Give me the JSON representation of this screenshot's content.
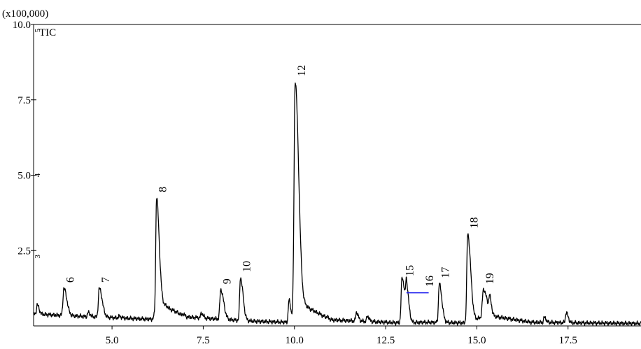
{
  "chart_data": {
    "type": "line",
    "scale_label": "(x100,000)",
    "trace_label": "TIC",
    "xlim": [
      2.85,
      19.5
    ],
    "ylim": [
      0,
      10
    ],
    "x_ticks": [
      {
        "value": 5.0,
        "label": "5.0"
      },
      {
        "value": 7.5,
        "label": "7.5"
      },
      {
        "value": 10.0,
        "label": "10.0"
      },
      {
        "value": 12.5,
        "label": "12.5"
      },
      {
        "value": 15.0,
        "label": "15.0"
      },
      {
        "value": 17.5,
        "label": "17.5"
      }
    ],
    "y_ticks": [
      {
        "value": 2.5,
        "label": "2.5"
      },
      {
        "value": 5.0,
        "label": "5.0"
      },
      {
        "value": 7.5,
        "label": "7.5"
      },
      {
        "value": 10.0,
        "label": "10.0"
      }
    ],
    "axis_marks": [
      {
        "y": 9.8,
        "text": "5"
      },
      {
        "y": 5.0,
        "text": "4"
      },
      {
        "y": 2.3,
        "text": "3"
      }
    ],
    "peaks": [
      {
        "label": "6",
        "rt": 3.68,
        "height": 1.25,
        "width": 0.025
      },
      {
        "label": "7",
        "rt": 4.65,
        "height": 1.25,
        "width": 0.025
      },
      {
        "label": "8",
        "rt": 6.22,
        "height": 4.25,
        "width": 0.022
      },
      {
        "label": "9",
        "rt": 7.98,
        "height": 1.2,
        "width": 0.025
      },
      {
        "label": "10",
        "rt": 8.52,
        "height": 1.6,
        "width": 0.022
      },
      {
        "label": "12",
        "rt": 10.02,
        "height": 8.1,
        "width": 0.03
      },
      {
        "label": "15",
        "rt": 12.95,
        "height": 1.6,
        "width": 0.025
      },
      {
        "label": "16",
        "rt": 13.07,
        "height": 1.1,
        "width": 0.02
      },
      {
        "label": "17",
        "rt": 13.97,
        "height": 1.4,
        "width": 0.022
      },
      {
        "label": "18",
        "rt": 14.75,
        "height": 3.05,
        "width": 0.025
      },
      {
        "label": "19",
        "rt": 15.18,
        "height": 1.2,
        "width": 0.03
      }
    ],
    "minor_peaks": [
      {
        "rt": 2.95,
        "height": 0.7
      },
      {
        "rt": 4.35,
        "height": 0.45
      },
      {
        "rt": 5.2,
        "height": 0.32
      },
      {
        "rt": 6.35,
        "height": 0.75
      },
      {
        "rt": 6.6,
        "height": 0.55
      },
      {
        "rt": 6.95,
        "height": 0.4
      },
      {
        "rt": 7.45,
        "height": 0.42
      },
      {
        "rt": 9.85,
        "height": 0.85
      },
      {
        "rt": 10.9,
        "height": 0.3
      },
      {
        "rt": 11.7,
        "height": 0.45
      },
      {
        "rt": 12.0,
        "height": 0.32
      },
      {
        "rt": 15.35,
        "height": 0.85
      },
      {
        "rt": 16.85,
        "height": 0.28
      },
      {
        "rt": 17.45,
        "height": 0.45
      }
    ],
    "baseline": [
      [
        2.85,
        0.4
      ],
      [
        3.6,
        0.35
      ],
      [
        4.5,
        0.3
      ],
      [
        6.1,
        0.22
      ],
      [
        6.35,
        0.75
      ],
      [
        7.0,
        0.3
      ],
      [
        8.0,
        0.22
      ],
      [
        9.0,
        0.15
      ],
      [
        9.9,
        0.12
      ],
      [
        10.3,
        0.65
      ],
      [
        11.0,
        0.2
      ],
      [
        12.9,
        0.1
      ],
      [
        13.6,
        0.12
      ],
      [
        14.7,
        0.1
      ],
      [
        15.3,
        0.35
      ],
      [
        16.5,
        0.12
      ],
      [
        19.5,
        0.08
      ]
    ],
    "integration_line": {
      "x1": 13.07,
      "x2": 13.68,
      "y": 1.1,
      "color": "#1a1aee"
    },
    "colors": {
      "trace": "#000000",
      "axis": "#000000",
      "integration": "#1a1aee",
      "background": "#ffffff"
    },
    "grid": false
  }
}
